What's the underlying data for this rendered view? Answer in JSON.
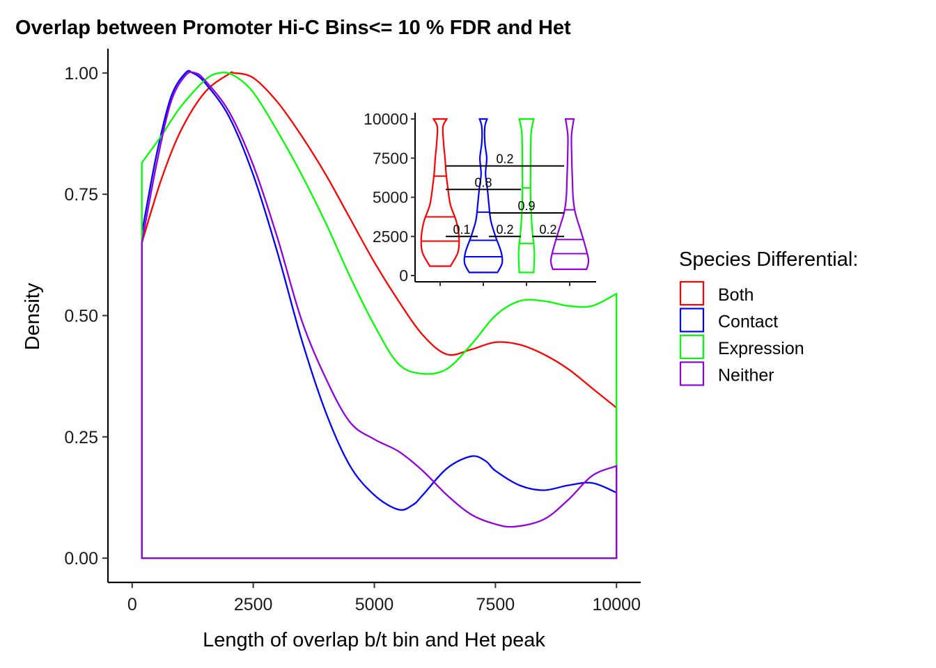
{
  "chart_data": {
    "type": "area",
    "title": "Overlap between Promoter Hi-C Bins<= 10 % FDR and Het",
    "xlabel": "Length of overlap b/t bin and Het peak",
    "ylabel": "Density",
    "xlim": [
      -500,
      10500
    ],
    "ylim": [
      -0.05,
      1.05
    ],
    "x_ticks": [
      0,
      2500,
      5000,
      7500,
      10000
    ],
    "x_tick_labels": [
      "0",
      "2500",
      "5000",
      "7500",
      "10000"
    ],
    "y_ticks": [
      0,
      0.25,
      0.5,
      0.75,
      1.0
    ],
    "y_tick_labels": [
      "0.00",
      "0.25",
      "0.50",
      "0.75",
      "1.00"
    ],
    "grid": false,
    "legend": {
      "title": "Species Differential:",
      "position": "right",
      "entries": [
        "Both",
        "Contact",
        "Expression",
        "Neither"
      ]
    },
    "series": [
      {
        "name": "Both",
        "color": "#ff0000",
        "x": [
          200,
          600,
          1000,
          1500,
          2000,
          2100,
          2500,
          3000,
          3500,
          4000,
          4500,
          5000,
          5500,
          6000,
          6500,
          7000,
          7500,
          8000,
          8500,
          9000,
          9500,
          10000
        ],
        "y": [
          0.65,
          0.78,
          0.88,
          0.96,
          0.998,
          1.0,
          0.99,
          0.94,
          0.87,
          0.79,
          0.7,
          0.61,
          0.53,
          0.46,
          0.42,
          0.43,
          0.445,
          0.44,
          0.42,
          0.39,
          0.35,
          0.31
        ]
      },
      {
        "name": "Contact",
        "color": "#0000ff",
        "x": [
          200,
          500,
          800,
          1100,
          1250,
          1500,
          2000,
          2500,
          3000,
          3500,
          4000,
          4500,
          5000,
          5500,
          5800,
          6000,
          6500,
          7000,
          7300,
          7500,
          8000,
          8500,
          9000,
          9500,
          10000
        ],
        "y": [
          0.67,
          0.83,
          0.95,
          1.0,
          1.0,
          0.98,
          0.91,
          0.79,
          0.63,
          0.45,
          0.3,
          0.19,
          0.13,
          0.1,
          0.11,
          0.13,
          0.185,
          0.21,
          0.2,
          0.18,
          0.15,
          0.14,
          0.15,
          0.155,
          0.135
        ]
      },
      {
        "name": "Expression",
        "color": "#00ff00",
        "x": [
          200,
          600,
          1000,
          1500,
          1800,
          2100,
          2500,
          3000,
          3500,
          4000,
          4500,
          5000,
          5500,
          6000,
          6500,
          7000,
          7500,
          8000,
          8500,
          9000,
          9500,
          10000
        ],
        "y": [
          0.815,
          0.87,
          0.93,
          0.985,
          1.0,
          0.995,
          0.96,
          0.88,
          0.79,
          0.69,
          0.58,
          0.48,
          0.4,
          0.38,
          0.39,
          0.44,
          0.5,
          0.53,
          0.53,
          0.52,
          0.52,
          0.545
        ]
      },
      {
        "name": "Neither",
        "color": "#9000e0",
        "x": [
          200,
          500,
          800,
          1100,
          1300,
          1500,
          2000,
          2500,
          3000,
          3500,
          4000,
          4500,
          5000,
          5500,
          6000,
          6500,
          7000,
          7500,
          7900,
          8500,
          9000,
          9500,
          10000
        ],
        "y": [
          0.65,
          0.81,
          0.94,
          0.995,
          1.0,
          0.985,
          0.92,
          0.81,
          0.66,
          0.49,
          0.37,
          0.28,
          0.245,
          0.22,
          0.18,
          0.13,
          0.09,
          0.07,
          0.065,
          0.08,
          0.12,
          0.17,
          0.19
        ]
      }
    ],
    "inset": {
      "type": "violin",
      "ylim": [
        -400,
        10400
      ],
      "y_ticks": [
        0,
        2500,
        5000,
        7500,
        10000
      ],
      "y_tick_labels": [
        "0",
        "2500",
        "5000",
        "7500",
        "10000"
      ],
      "groups": [
        {
          "name": "Both",
          "color": "#ff0000",
          "quartiles": [
            2200,
            3750,
            6350
          ],
          "min": 600,
          "max": 10000
        },
        {
          "name": "Contact",
          "color": "#0000ff",
          "quartiles": [
            1200,
            2250,
            4050
          ],
          "min": 200,
          "max": 10000
        },
        {
          "name": "Expression",
          "color": "#00ff00",
          "quartiles": [
            2050,
            5600,
            10000
          ],
          "min": 200,
          "max": 10000
        },
        {
          "name": "Neither",
          "color": "#9000e0",
          "quartiles": [
            1400,
            2300,
            4200
          ],
          "min": 400,
          "max": 10000
        }
      ],
      "comparisons": [
        {
          "pair": [
            "Both",
            "Neither"
          ],
          "y": 7000,
          "p_label": "0.2"
        },
        {
          "pair": [
            "Both",
            "Expression"
          ],
          "y": 5500,
          "p_label": "0.8"
        },
        {
          "pair": [
            "Contact",
            "Neither"
          ],
          "y": 4000,
          "p_label": "0.9"
        },
        {
          "pair": [
            "Both",
            "Contact"
          ],
          "y": 2500,
          "p_label": "0.1"
        },
        {
          "pair": [
            "Contact",
            "Expression"
          ],
          "y": 2500,
          "p_label": "0.2"
        },
        {
          "pair": [
            "Expression",
            "Neither"
          ],
          "y": 2500,
          "p_label": "0.2"
        }
      ]
    }
  }
}
